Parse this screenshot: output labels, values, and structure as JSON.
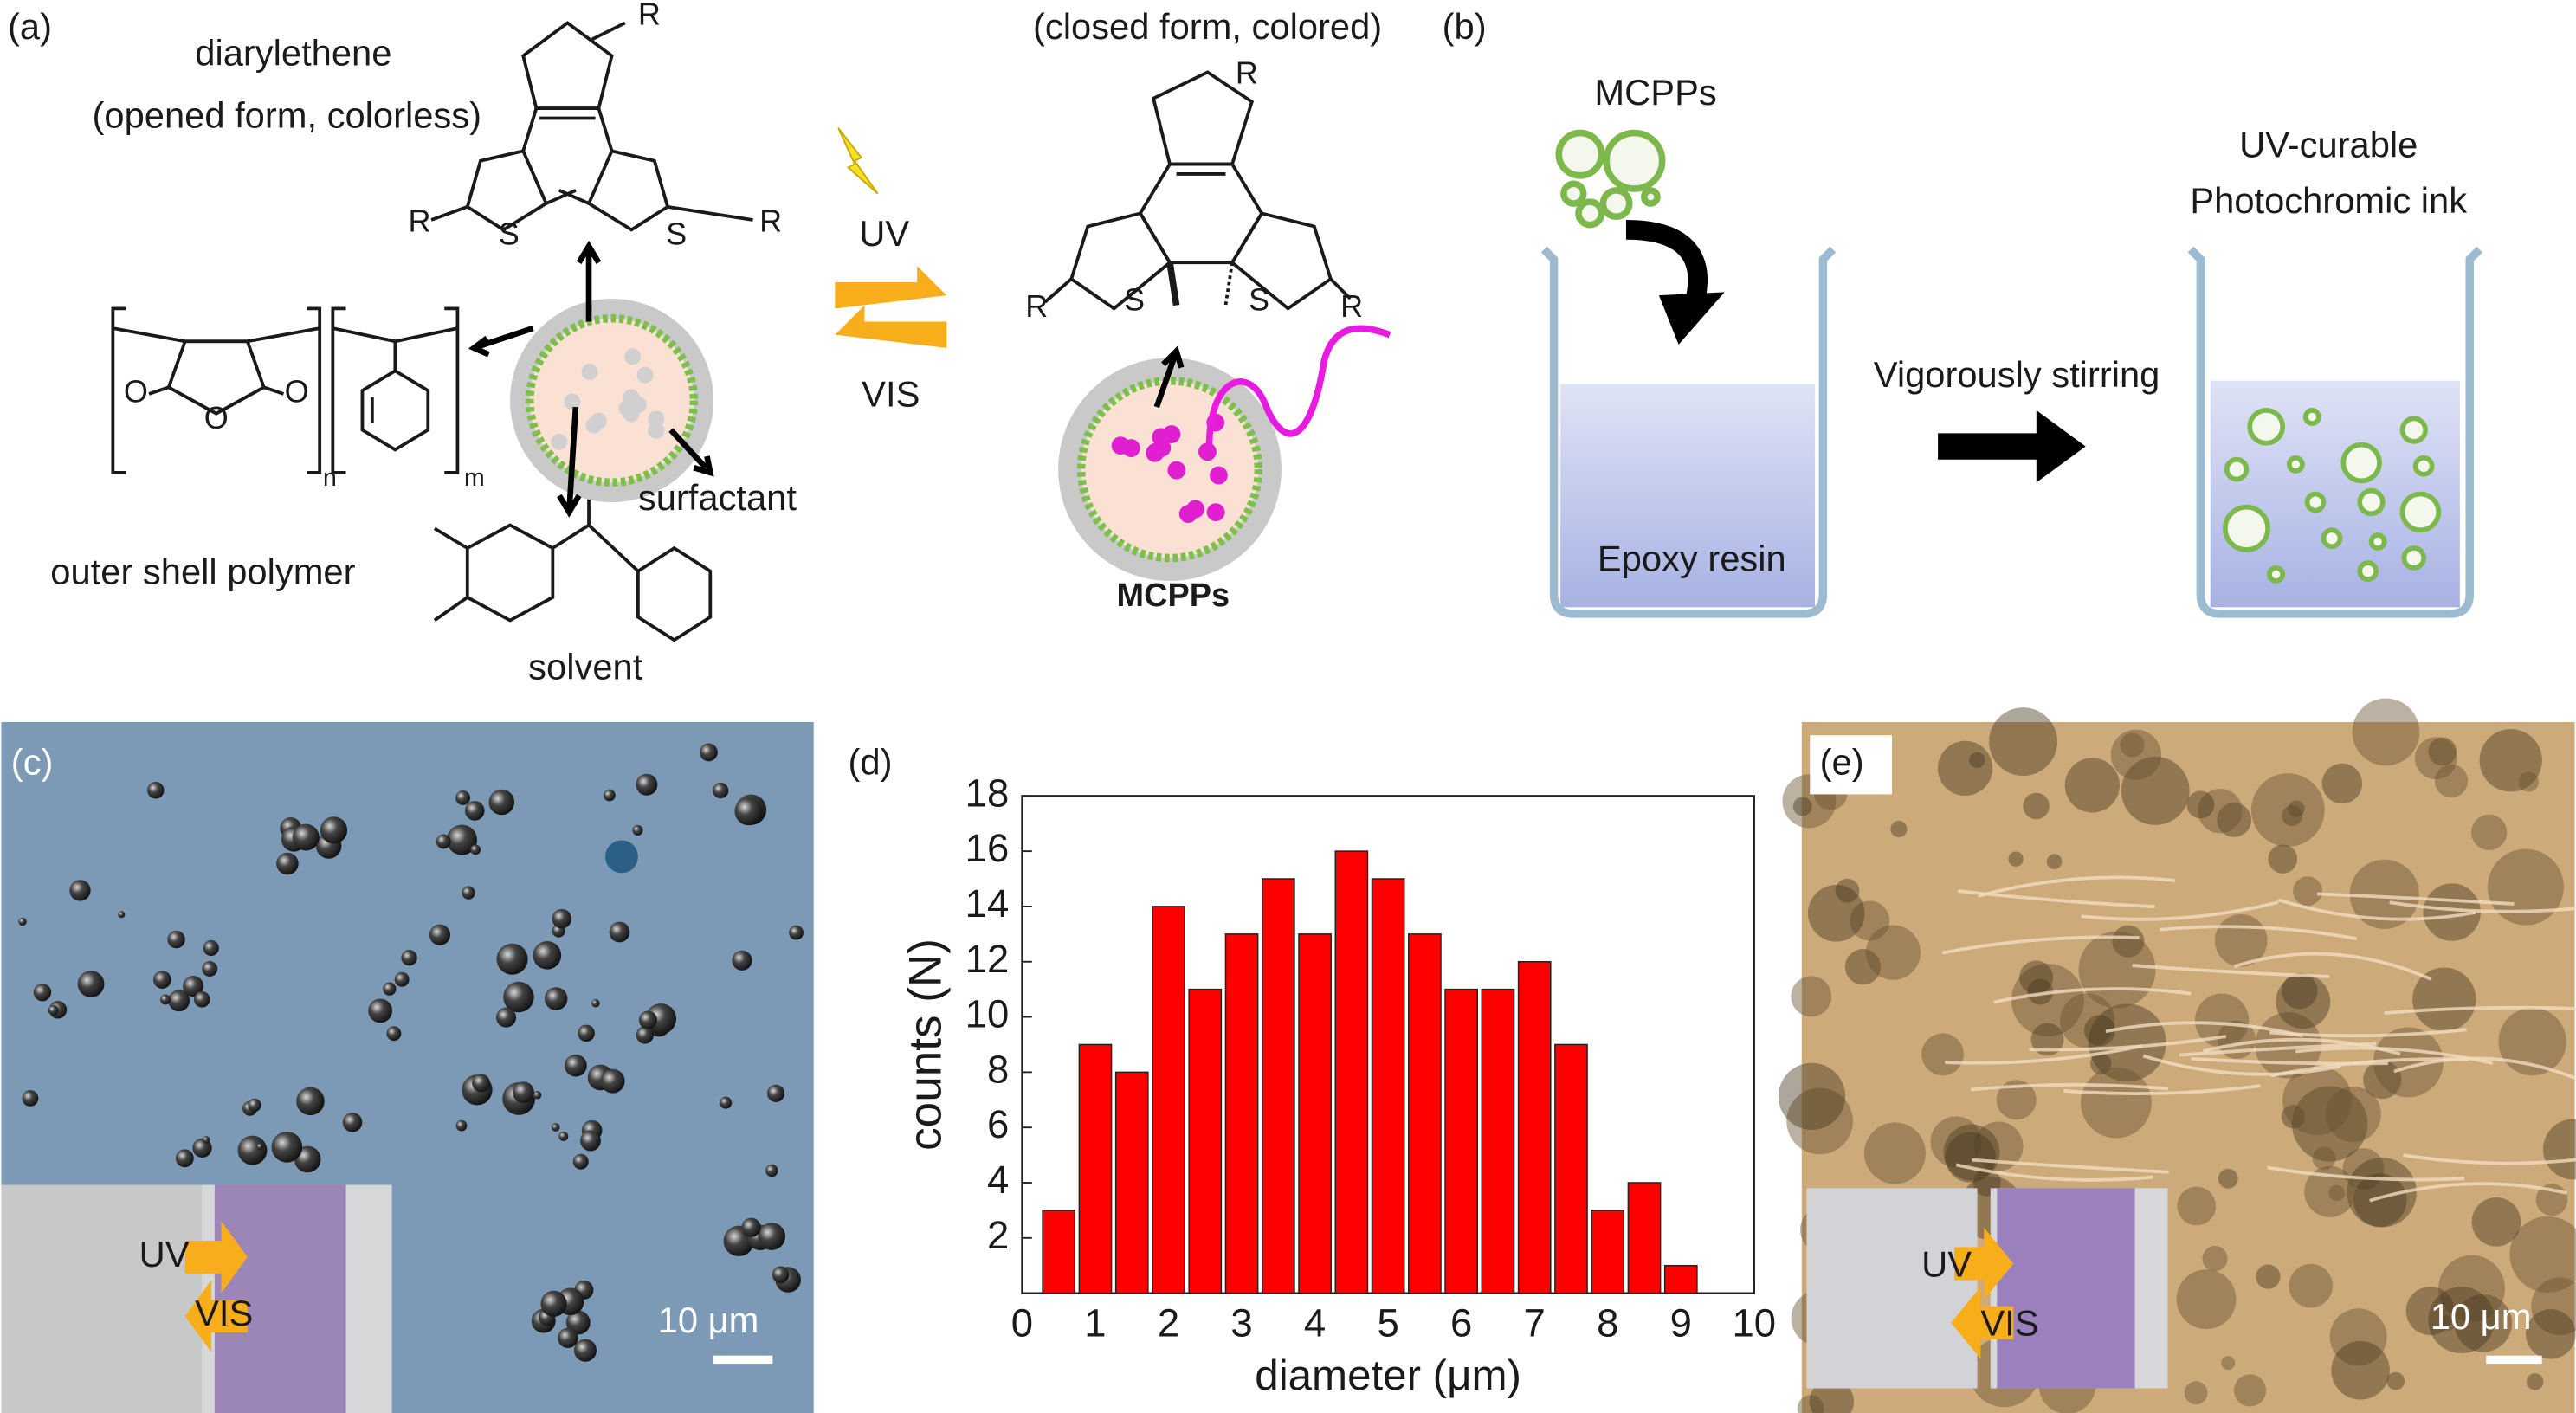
{
  "panel_labels": [
    "(a)",
    "(b)",
    "(c)",
    "(d)",
    "(e)"
  ],
  "panel_a": {
    "open_form": {
      "name": "diarylethene",
      "state": "(opened form, colorless)",
      "atoms": [
        "R",
        "R",
        "R",
        "S",
        "S"
      ]
    },
    "polymer": {
      "label": "outer shell polymer",
      "atoms": [
        "O",
        "O",
        "O"
      ],
      "subscripts": [
        "n",
        "m"
      ]
    },
    "surfactant": "surfactant",
    "solvent": "solvent",
    "uv": "UV",
    "vis": "VIS",
    "closed_form": {
      "state": "(closed form, colored)",
      "atoms": [
        "R",
        "R",
        "R",
        "S",
        "S"
      ]
    },
    "particle": "MCPPs"
  },
  "panel_b": {
    "particles": "MCPPs",
    "resin": "Epoxy resin",
    "step": "Vigorously stirring",
    "product": [
      "UV-curable",
      "Photochromic ink"
    ]
  },
  "panel_c": {
    "inset": [
      "UV",
      "VIS"
    ],
    "scale_bar": "10 μm"
  },
  "chart_data": {
    "type": "bar",
    "x": [
      0.5,
      1,
      1.5,
      2,
      2.5,
      3,
      3.5,
      4,
      4.5,
      5,
      5.5,
      6,
      6.5,
      7,
      7.5,
      8,
      8.5,
      9
    ],
    "values": [
      3,
      9,
      8,
      14,
      11,
      13,
      15,
      13,
      16,
      15,
      13,
      11,
      11,
      12,
      9,
      3,
      4,
      1
    ],
    "color": "#ff0000",
    "xlabel": "diameter (μm)",
    "ylabel": "counts (N)",
    "xlim": [
      0,
      10
    ],
    "ylim": [
      0,
      18
    ],
    "xticks": [
      0,
      1,
      2,
      3,
      4,
      5,
      6,
      7,
      8,
      9,
      10
    ],
    "yticks": [
      2,
      4,
      6,
      8,
      10,
      12,
      14,
      16,
      18
    ]
  },
  "panel_e": {
    "inset": [
      "UV",
      "VIS"
    ],
    "scale_bar": "10 μm"
  }
}
